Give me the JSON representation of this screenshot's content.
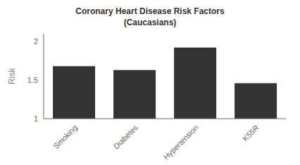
{
  "chart_data": {
    "type": "bar",
    "title": "Coronary Heart Disease Risk Factors",
    "subtitle": "(Caucasians)",
    "categories": [
      "Smoking",
      "Diabetes",
      "Hypertension",
      "K55R"
    ],
    "values": [
      1.68,
      1.63,
      1.92,
      1.46
    ],
    "color": "#333333",
    "ylabel": "Risk",
    "ylim": [
      1.0,
      2.1
    ],
    "yticks": [
      1.0,
      1.5,
      2.0
    ],
    "grid": false
  }
}
